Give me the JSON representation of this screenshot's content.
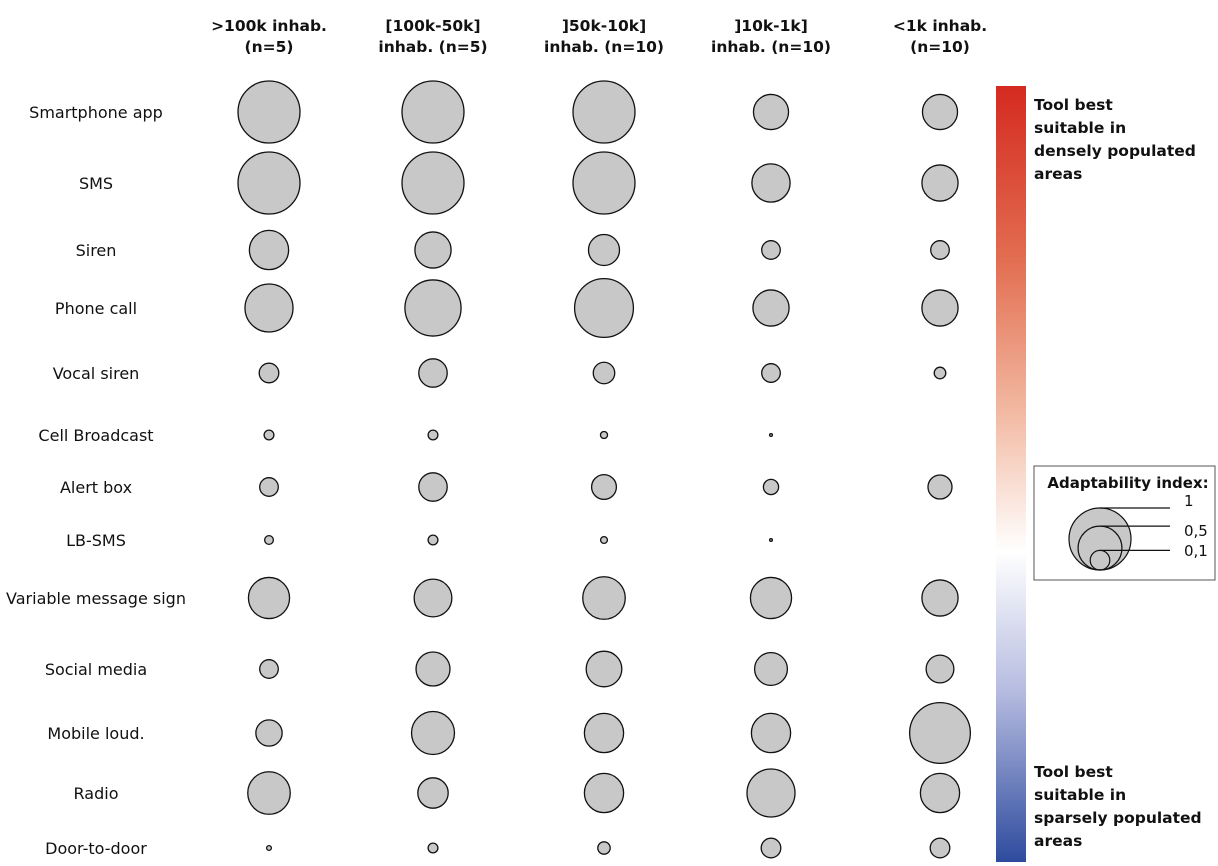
{
  "chart_data": {
    "type": "bubble-matrix",
    "columns": [
      ">100k inhab.\n(n=5)",
      "[100k-50k]\ninhab. (n=5)",
      "]50k-10k]\ninhab. (n=10)",
      "]10k-1k]\ninhab. (n=10)",
      "<1k inhab.\n(n=10)"
    ],
    "rows": [
      "Smartphone app",
      "SMS",
      "Siren",
      "Phone call",
      "Vocal siren",
      "Cell Broadcast",
      "Alert box",
      "LB-SMS",
      "Variable message sign",
      "Social media",
      "Mobile loud.",
      "Radio",
      "Door-to-door"
    ],
    "values": [
      [
        1.0,
        1.0,
        1.0,
        0.32,
        0.32
      ],
      [
        1.0,
        1.0,
        1.0,
        0.38,
        0.34
      ],
      [
        0.4,
        0.34,
        0.25,
        0.09,
        0.09
      ],
      [
        0.6,
        0.82,
        0.9,
        0.34,
        0.34
      ],
      [
        0.1,
        0.21,
        0.12,
        0.09,
        0.035
      ],
      [
        0.025,
        0.025,
        0.013,
        0.002,
        0
      ],
      [
        0.09,
        0.21,
        0.16,
        0.06,
        0.15
      ],
      [
        0.02,
        0.025,
        0.012,
        0.001,
        0
      ],
      [
        0.44,
        0.37,
        0.47,
        0.44,
        0.34
      ],
      [
        0.09,
        0.3,
        0.33,
        0.28,
        0.2
      ],
      [
        0.18,
        0.48,
        0.4,
        0.4,
        0.96
      ],
      [
        0.47,
        0.24,
        0.4,
        0.6,
        0.4
      ],
      [
        0.006,
        0.025,
        0.04,
        0.1,
        0.1
      ]
    ],
    "colorbar": {
      "top_color": "#d42a1f",
      "middle_color": "#ffffff",
      "bottom_color": "#2e4b9e",
      "top_label": "Tool best\nsuitable in\ndensely populated\nareas",
      "bottom_label": "Tool best\nsuitable in\nsparsely populated\nareas"
    },
    "legend": {
      "title": "Adaptability index:",
      "levels": [
        {
          "value": 1,
          "label": "1"
        },
        {
          "value": 0.5,
          "label": "0,5"
        },
        {
          "value": 0.1,
          "label": "0,1"
        }
      ]
    },
    "bubble_fill": "#c8c8c8",
    "bubble_stroke": "#111111"
  }
}
